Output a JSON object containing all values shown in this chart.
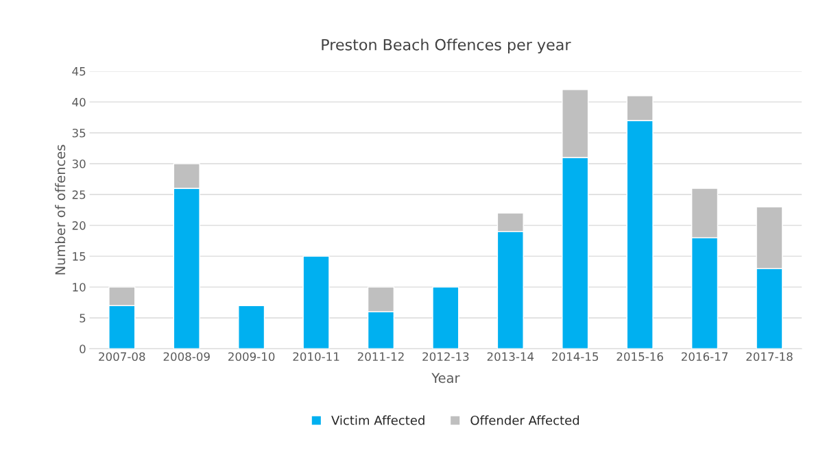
{
  "chart_data": {
    "type": "bar",
    "title": "Preston Beach Offences per year",
    "xlabel": "Year",
    "ylabel": "Number of offences",
    "categories": [
      "2007-08",
      "2008-09",
      "2009-10",
      "2010-11",
      "2011-12",
      "2012-13",
      "2013-14",
      "2014-15",
      "2015-16",
      "2016-17",
      "2017-18"
    ],
    "series": [
      {
        "name": "Victim Affected",
        "color": "#00b0f0",
        "values": [
          7,
          26,
          7,
          15,
          6,
          10,
          19,
          31,
          37,
          18,
          13
        ]
      },
      {
        "name": "Offender Affected",
        "color": "#bfbfbf",
        "values": [
          3,
          4,
          null,
          null,
          4,
          null,
          3,
          11,
          4,
          8,
          10
        ]
      }
    ],
    "stacked": true,
    "ylim": [
      0,
      45
    ],
    "yticks": [
      0,
      5,
      10,
      15,
      20,
      25,
      30,
      35,
      40,
      45
    ],
    "grid": "y",
    "legend": "bottom"
  }
}
